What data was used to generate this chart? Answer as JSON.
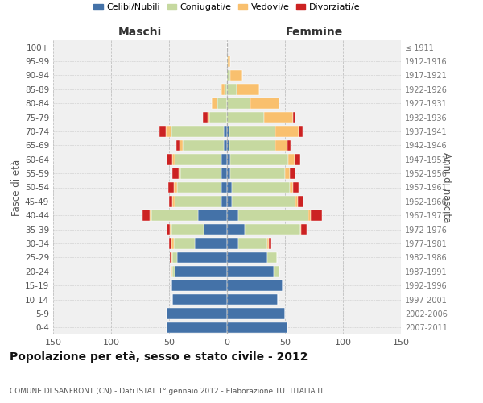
{
  "age_groups": [
    "0-4",
    "5-9",
    "10-14",
    "15-19",
    "20-24",
    "25-29",
    "30-34",
    "35-39",
    "40-44",
    "45-49",
    "50-54",
    "55-59",
    "60-64",
    "65-69",
    "70-74",
    "75-79",
    "80-84",
    "85-89",
    "90-94",
    "95-99",
    "100+"
  ],
  "birth_years": [
    "2007-2011",
    "2002-2006",
    "1997-2001",
    "1992-1996",
    "1987-1991",
    "1982-1986",
    "1977-1981",
    "1972-1976",
    "1967-1971",
    "1962-1966",
    "1957-1961",
    "1952-1956",
    "1947-1951",
    "1942-1946",
    "1937-1941",
    "1932-1936",
    "1927-1931",
    "1922-1926",
    "1917-1921",
    "1912-1916",
    "≤ 1911"
  ],
  "maschi": {
    "celibi": [
      52,
      52,
      47,
      48,
      45,
      43,
      28,
      20,
      25,
      5,
      5,
      5,
      5,
      3,
      3,
      0,
      0,
      0,
      0,
      0,
      0
    ],
    "coniugati": [
      0,
      0,
      0,
      0,
      2,
      4,
      18,
      28,
      40,
      40,
      38,
      35,
      40,
      35,
      45,
      15,
      8,
      2,
      0,
      0,
      0
    ],
    "vedovi": [
      0,
      0,
      0,
      0,
      1,
      1,
      2,
      1,
      2,
      2,
      3,
      2,
      2,
      3,
      5,
      2,
      5,
      3,
      0,
      0,
      0
    ],
    "divorziati": [
      0,
      0,
      0,
      0,
      0,
      1,
      2,
      3,
      6,
      3,
      5,
      5,
      5,
      3,
      5,
      4,
      0,
      0,
      0,
      0,
      0
    ]
  },
  "femmine": {
    "nubili": [
      52,
      50,
      44,
      48,
      40,
      35,
      10,
      15,
      10,
      4,
      4,
      3,
      3,
      2,
      2,
      0,
      0,
      0,
      0,
      0,
      0
    ],
    "coniugate": [
      0,
      0,
      0,
      0,
      5,
      8,
      25,
      48,
      60,
      55,
      50,
      47,
      50,
      40,
      40,
      32,
      20,
      8,
      3,
      1,
      0
    ],
    "vedove": [
      0,
      0,
      0,
      0,
      0,
      0,
      1,
      1,
      2,
      2,
      3,
      4,
      5,
      10,
      20,
      25,
      25,
      20,
      10,
      2,
      0
    ],
    "divorziate": [
      0,
      0,
      0,
      0,
      0,
      0,
      2,
      5,
      10,
      5,
      5,
      5,
      5,
      3,
      3,
      2,
      0,
      0,
      0,
      0,
      0
    ]
  },
  "colors": {
    "celibe": "#4472a8",
    "coniugato": "#c6d9a0",
    "vedovo": "#f9c06e",
    "divorziato": "#cc2222"
  },
  "title": "Popolazione per età, sesso e stato civile - 2012",
  "subtitle": "COMUNE DI SANFRONT (CN) - Dati ISTAT 1° gennaio 2012 - Elaborazione TUTTITALIA.IT",
  "xlabel_maschi": "Maschi",
  "xlabel_femmine": "Femmine",
  "ylabel": "Fasce di età",
  "ylabel_right": "Anni di nascita",
  "xlim": 150,
  "legend_labels": [
    "Celibi/Nubili",
    "Coniugati/e",
    "Vedovi/e",
    "Divorziati/e"
  ],
  "bg_color": "#f0f0f0",
  "grid_color": "#bbbbbb"
}
